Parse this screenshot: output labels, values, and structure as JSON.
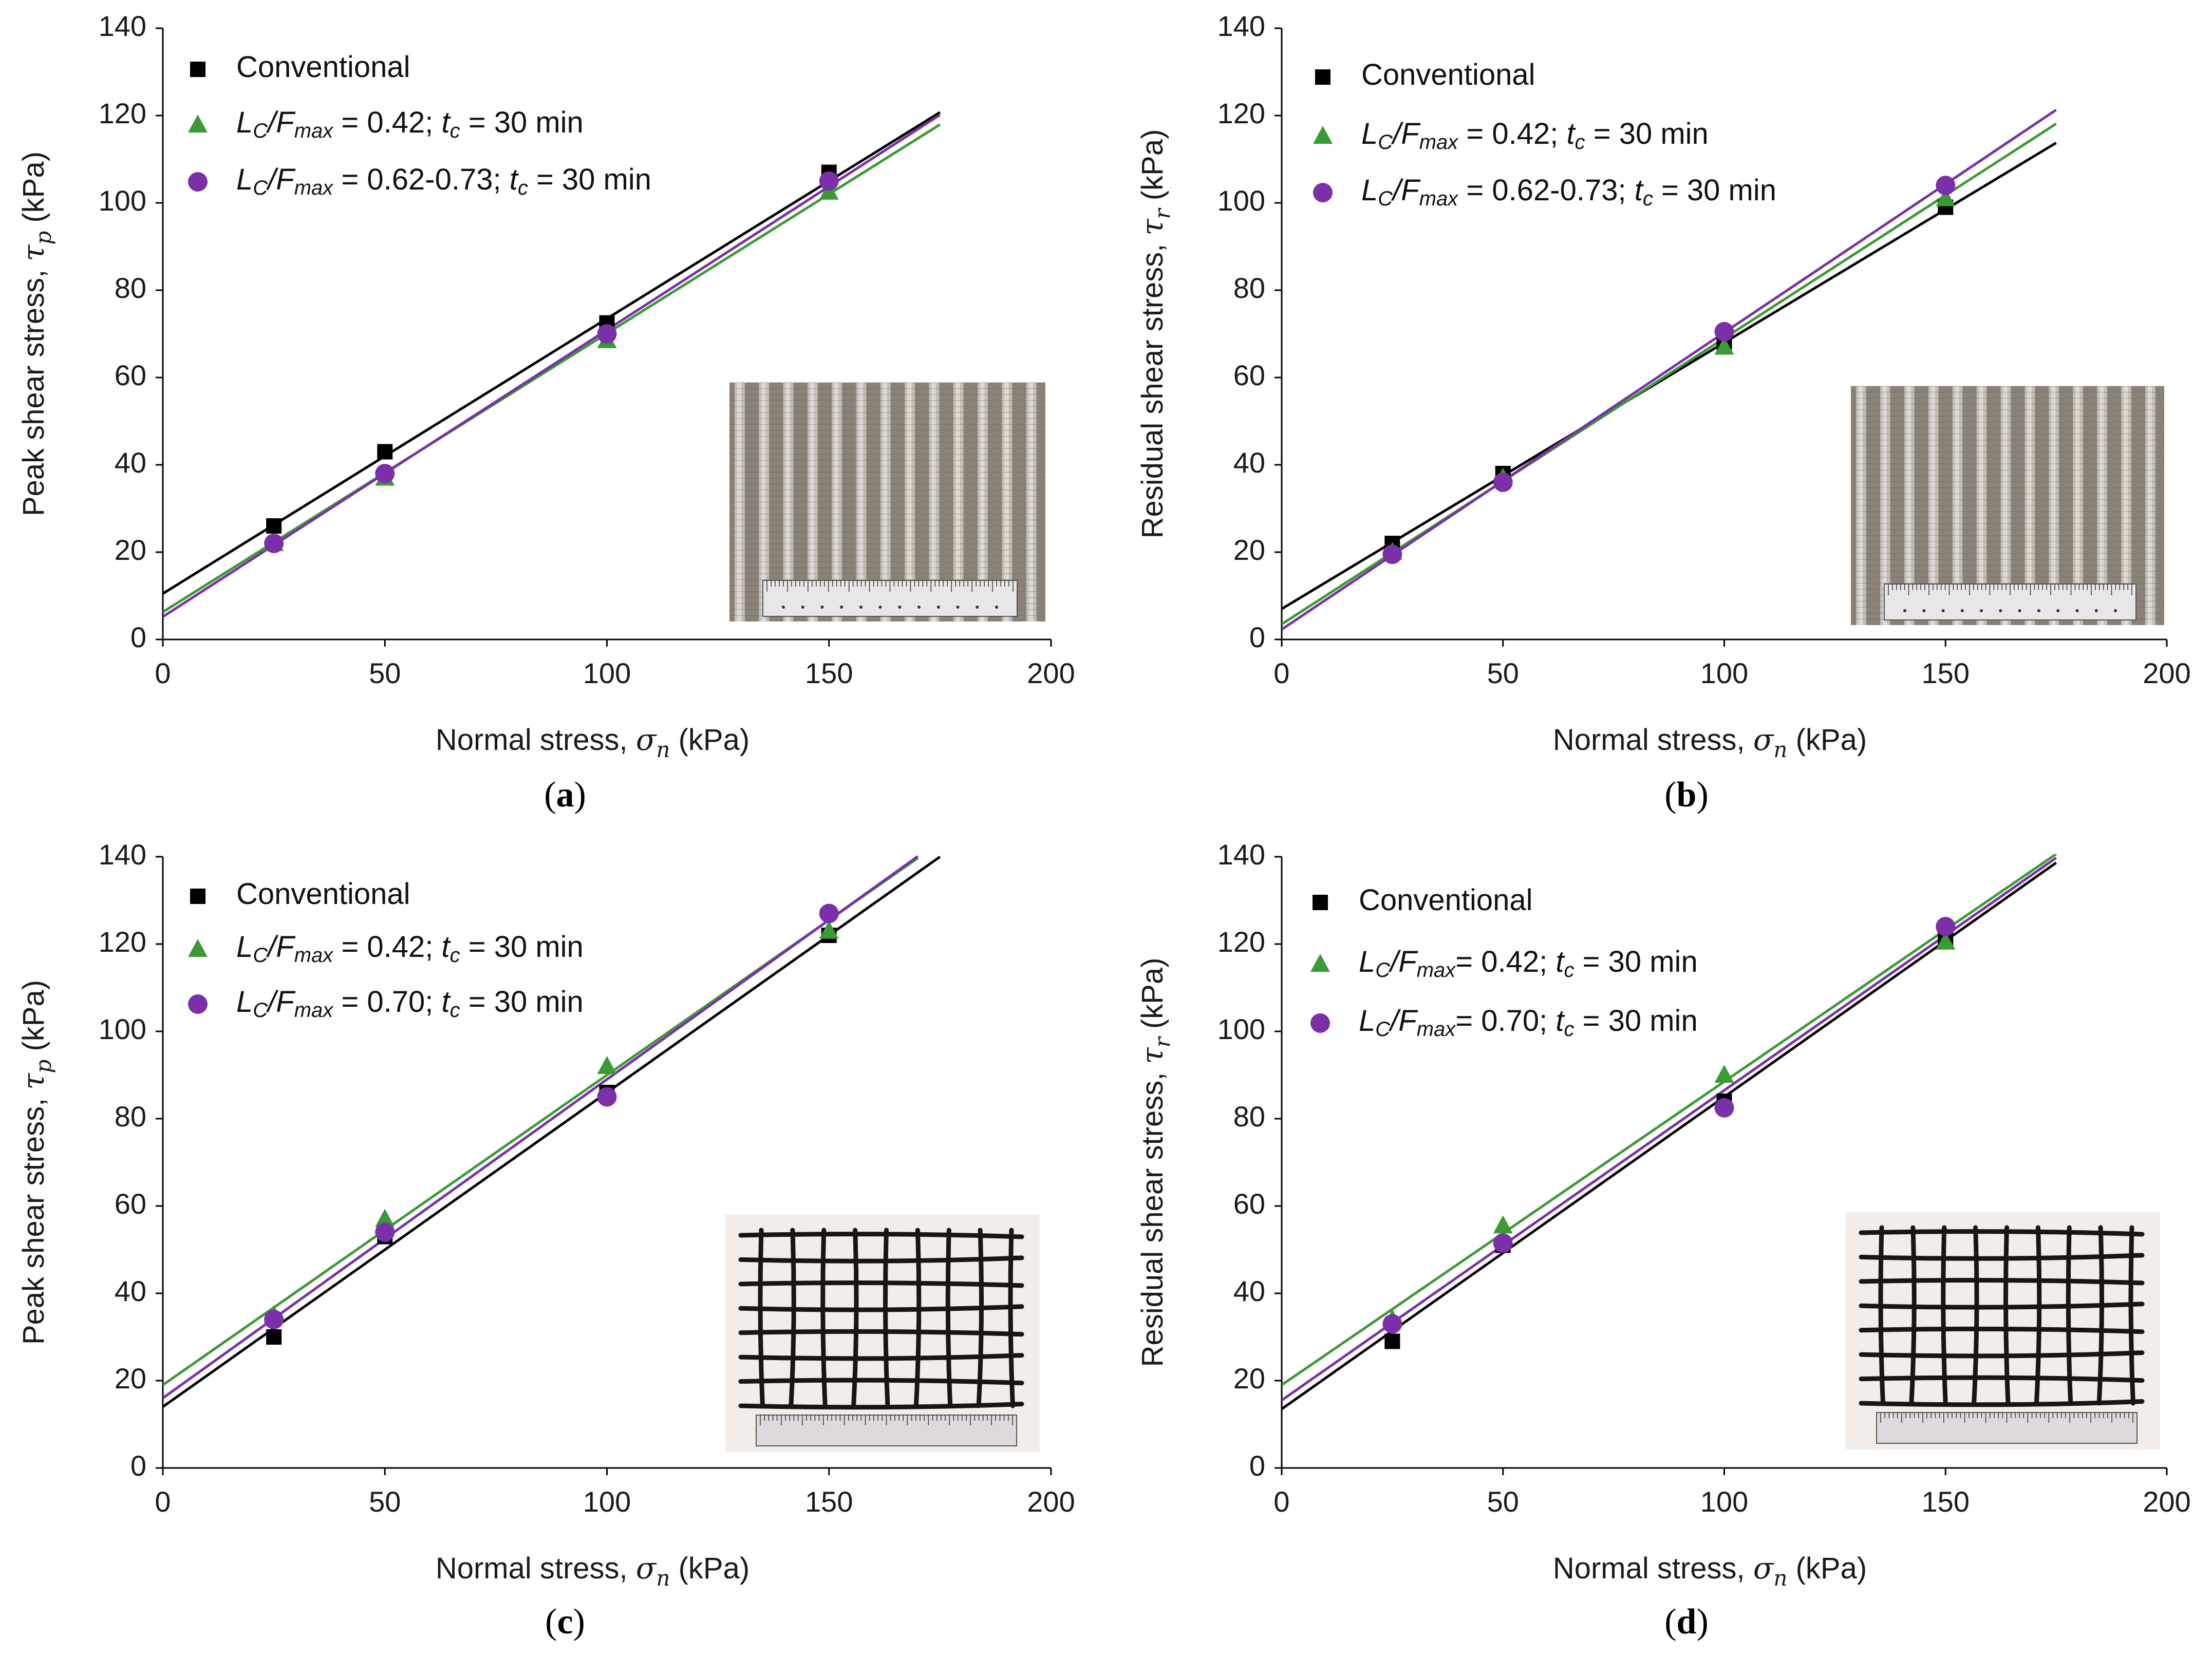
{
  "figure": {
    "colors": {
      "conventional": "#000000",
      "green": "#3a9a34",
      "purple": "#7b2fa8",
      "axis": "#000000"
    }
  },
  "chart_data": [
    {
      "type": "scatter",
      "panel": "a",
      "caption": "(a)",
      "xlabel": "Normal stress, σn (kPa)",
      "xlabel_parts": [
        "Normal stress, ",
        "σ",
        "n",
        " (kPa)"
      ],
      "ylabel": "Peak shear stress, τp (kPa)",
      "ylabel_parts": [
        "Peak shear stress, ",
        "τ",
        "p",
        " (kPa)"
      ],
      "xlim": [
        0,
        200
      ],
      "ylim": [
        0,
        140
      ],
      "xticks": [
        0,
        50,
        100,
        150,
        200
      ],
      "yticks": [
        0,
        20,
        40,
        60,
        80,
        100,
        120,
        140
      ],
      "grid": false,
      "legend_position": "top-left",
      "inset": "geotextile-strip",
      "series": [
        {
          "name": "Conventional",
          "legend_parts": [
            "Conventional"
          ],
          "marker": "square",
          "color": "#000000",
          "x": [
            25,
            50,
            100,
            150
          ],
          "y": [
            26,
            43,
            72.5,
            107
          ],
          "fit": {
            "intercept": 10.5,
            "slope": 0.63,
            "x_end": 175
          }
        },
        {
          "name": "LC/Fmax = 0.42; tc = 30 min",
          "legend_parts": [
            "L",
            "C",
            "/F",
            "max",
            " = 0.42; ",
            "t",
            "c",
            " = 30 min"
          ],
          "marker": "triangle",
          "color": "#3a9a34",
          "x": [
            25,
            50,
            100,
            150
          ],
          "y": [
            22,
            37,
            68.5,
            102.5
          ],
          "fit": {
            "intercept": 6.3,
            "slope": 0.638,
            "x_end": 175
          }
        },
        {
          "name": "LC/Fmax = 0.62-0.73; tc = 30 min",
          "legend_parts": [
            "L",
            "C",
            "/F",
            "max",
            " = 0.62-0.73; ",
            "t",
            "c",
            " = 30 min"
          ],
          "marker": "circle",
          "color": "#7b2fa8",
          "x": [
            25,
            50,
            100,
            150
          ],
          "y": [
            22,
            38,
            70,
            105
          ],
          "fit": {
            "intercept": 5.2,
            "slope": 0.657,
            "x_end": 175
          }
        }
      ]
    },
    {
      "type": "scatter",
      "panel": "b",
      "caption": "(b)",
      "xlabel": "Normal stress, σn (kPa)",
      "xlabel_parts": [
        "Normal stress, ",
        "σ",
        "n",
        " (kPa)"
      ],
      "ylabel": "Residual shear stress, τr (kPa)",
      "ylabel_parts": [
        "Residual shear stress, ",
        "τ",
        "r",
        " (kPa)"
      ],
      "xlim": [
        0,
        200
      ],
      "ylim": [
        0,
        140
      ],
      "xticks": [
        0,
        50,
        100,
        150,
        200
      ],
      "yticks": [
        0,
        20,
        40,
        60,
        80,
        100,
        120,
        140
      ],
      "grid": false,
      "legend_position": "top-left",
      "inset": "geotextile-strip",
      "series": [
        {
          "name": "Conventional",
          "legend_parts": [
            "Conventional"
          ],
          "marker": "square",
          "color": "#000000",
          "x": [
            25,
            50,
            100,
            150
          ],
          "y": [
            22,
            38,
            68,
            99
          ],
          "fit": {
            "intercept": 7.0,
            "slope": 0.61,
            "x_end": 175
          }
        },
        {
          "name": "LC/Fmax = 0.42; tc = 30 min",
          "legend_parts": [
            "L",
            "C",
            "/F",
            "max",
            " = 0.42; ",
            "t",
            "c",
            " = 30 min"
          ],
          "marker": "triangle",
          "color": "#3a9a34",
          "x": [
            25,
            50,
            100,
            150
          ],
          "y": [
            20,
            37,
            67,
            101
          ],
          "fit": {
            "intercept": 3.5,
            "slope": 0.655,
            "x_end": 175
          }
        },
        {
          "name": "LC/Fmax = 0.62-0.73; tc = 30 min",
          "legend_parts": [
            "L",
            "C",
            "/F",
            "max",
            " = 0.62-0.73; ",
            "t",
            "c",
            " = 30 min"
          ],
          "marker": "circle",
          "color": "#7b2fa8",
          "x": [
            25,
            50,
            100,
            150
          ],
          "y": [
            19.5,
            36,
            70.5,
            104
          ],
          "fit": {
            "intercept": 2.3,
            "slope": 0.68,
            "x_end": 175
          }
        }
      ]
    },
    {
      "type": "scatter",
      "panel": "c",
      "caption": "(c)",
      "xlabel": "Normal stress, σn (kPa)",
      "xlabel_parts": [
        "Normal stress, ",
        "σ",
        "n",
        " (kPa)"
      ],
      "ylabel": "Peak shear stress, τp (kPa)",
      "ylabel_parts": [
        "Peak shear stress, ",
        "τ",
        "p",
        " (kPa)"
      ],
      "xlim": [
        0,
        200
      ],
      "ylim": [
        0,
        140
      ],
      "xticks": [
        0,
        50,
        100,
        150,
        200
      ],
      "yticks": [
        0,
        20,
        40,
        60,
        80,
        100,
        120,
        140
      ],
      "grid": false,
      "legend_position": "top-left",
      "inset": "geogrid",
      "series": [
        {
          "name": "Conventional",
          "legend_parts": [
            "Conventional"
          ],
          "marker": "square",
          "color": "#000000",
          "x": [
            25,
            50,
            100,
            150
          ],
          "y": [
            30,
            53,
            86,
            122
          ],
          "fit": {
            "intercept": 14,
            "slope": 0.72,
            "x_end": 175
          }
        },
        {
          "name": "LC/Fmax = 0.42; tc = 30 min",
          "legend_parts": [
            "L",
            "C",
            "/F",
            "max",
            " = 0.42; ",
            "t",
            "c",
            " = 30 min"
          ],
          "marker": "triangle",
          "color": "#3a9a34",
          "x": [
            25,
            50,
            100,
            150
          ],
          "y": [
            35,
            57,
            92,
            123
          ],
          "fit": {
            "intercept": 19,
            "slope": 0.71,
            "x_end": 170
          }
        },
        {
          "name": "LC/Fmax = 0.70; tc = 30 min",
          "legend_parts": [
            "L",
            "C",
            "/F",
            "max",
            " = 0.70; ",
            "t",
            "c",
            " = 30 min"
          ],
          "marker": "circle",
          "color": "#7b2fa8",
          "x": [
            25,
            50,
            100,
            150
          ],
          "y": [
            34,
            54,
            85,
            127
          ],
          "fit": {
            "intercept": 16,
            "slope": 0.73,
            "x_end": 170
          }
        }
      ]
    },
    {
      "type": "scatter",
      "panel": "d",
      "caption": "(d)",
      "xlabel": "Normal stress, σn (kPa)",
      "xlabel_parts": [
        "Normal stress, ",
        "σ",
        "n",
        " (kPa)"
      ],
      "ylabel": "Residual shear stress, τr (kPa)",
      "ylabel_parts": [
        "Residual shear stress, ",
        "τ",
        "r",
        " (kPa)"
      ],
      "xlim": [
        0,
        200
      ],
      "ylim": [
        0,
        140
      ],
      "xticks": [
        0,
        50,
        100,
        150,
        200
      ],
      "yticks": [
        0,
        20,
        40,
        60,
        80,
        100,
        120,
        140
      ],
      "grid": false,
      "legend_position": "top-left",
      "inset": "geogrid",
      "series": [
        {
          "name": "Conventional",
          "legend_parts": [
            "Conventional"
          ],
          "marker": "square",
          "color": "#000000",
          "x": [
            25,
            50,
            100,
            150
          ],
          "y": [
            29,
            51,
            84,
            121
          ],
          "fit": {
            "intercept": 13.5,
            "slope": 0.715,
            "x_end": 175
          }
        },
        {
          "name": "LC/Fmax= 0.42; tc = 30 min",
          "legend_parts": [
            "L",
            "C",
            "/F",
            "max",
            "= 0.42; ",
            "t",
            "c",
            " = 30 min"
          ],
          "marker": "triangle",
          "color": "#3a9a34",
          "x": [
            25,
            50,
            100,
            150
          ],
          "y": [
            34,
            55.5,
            90,
            120.5
          ],
          "fit": {
            "intercept": 19,
            "slope": 0.695,
            "x_end": 175
          }
        },
        {
          "name": "LC/Fmax= 0.70; tc = 30 min",
          "legend_parts": [
            "L",
            "C",
            "/F",
            "max",
            "= 0.70; ",
            "t",
            "c",
            " = 30 min"
          ],
          "marker": "circle",
          "color": "#7b2fa8",
          "x": [
            25,
            50,
            100,
            150
          ],
          "y": [
            33,
            51.5,
            82.5,
            124
          ],
          "fit": {
            "intercept": 15.5,
            "slope": 0.71,
            "x_end": 175
          }
        }
      ]
    }
  ]
}
